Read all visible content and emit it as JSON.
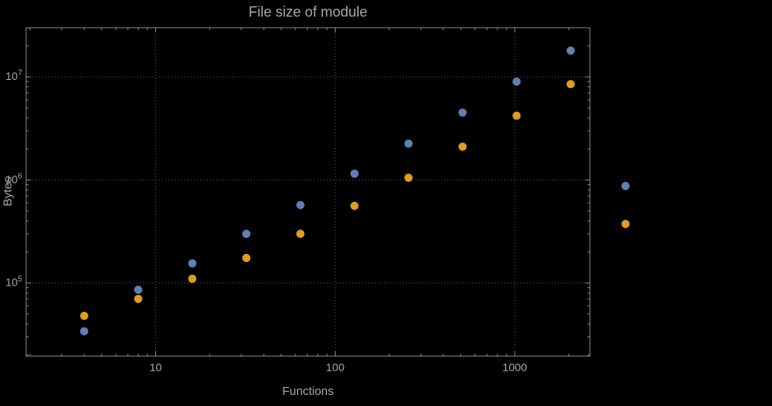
{
  "chart_data": {
    "type": "scatter",
    "title": "File size of module",
    "xlabel": "Functions",
    "ylabel": "Bytes",
    "x_scale": "log",
    "y_scale": "log",
    "xlim": [
      1.9,
      2620
    ],
    "ylim": [
      19500,
      30000000
    ],
    "x_ticks": [
      10,
      100,
      1000
    ],
    "x_tick_labels": [
      "10",
      "100",
      "1000"
    ],
    "y_ticks": [
      100000,
      1000000,
      10000000
    ],
    "y_tick_exponents": [
      "5",
      "6",
      "7"
    ],
    "y_tick_base": "10",
    "grid": "dotted",
    "legend_position": "right-outside",
    "series": [
      {
        "name": "series-blue",
        "color": "#5e81b5",
        "x": [
          4,
          8,
          16,
          32,
          64,
          128,
          256,
          512,
          1024,
          2048
        ],
        "y": [
          34000,
          86000,
          155000,
          300000,
          570000,
          1150000,
          2250000,
          4500000,
          9000000,
          18000000
        ]
      },
      {
        "name": "series-orange",
        "color": "#e19c24",
        "x": [
          4,
          8,
          16,
          32,
          64,
          128,
          256,
          512,
          1024,
          2048
        ],
        "y": [
          48000,
          70000,
          110000,
          175000,
          300000,
          560000,
          1050000,
          2100000,
          4200000,
          8500000
        ]
      }
    ],
    "legend_markers": [
      {
        "name": "legend-marker-blue",
        "color": "#5e81b5"
      },
      {
        "name": "legend-marker-orange",
        "color": "#e19c24"
      }
    ]
  },
  "colors": {
    "background": "#000000",
    "frame": "#8a8a8a",
    "grid": "#5a5a5a",
    "text": "#a8a8a8"
  }
}
